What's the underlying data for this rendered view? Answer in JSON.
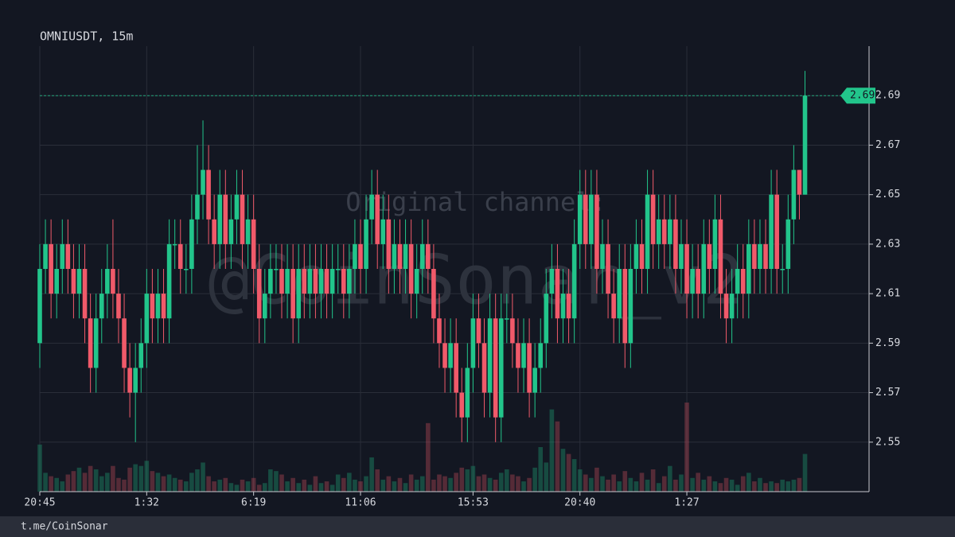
{
  "chart_data": {
    "type": "candlestick",
    "title": "OMNIUSDT, 15m",
    "watermark": [
      "Original channel:",
      "@CoinSonar_v2"
    ],
    "x": [
      "20:45",
      null,
      null,
      null,
      null,
      null,
      null,
      null,
      null,
      null,
      null,
      null,
      null,
      null,
      null,
      null,
      null,
      null,
      null,
      "1:32",
      null,
      null,
      null,
      null,
      null,
      null,
      null,
      null,
      null,
      null,
      null,
      null,
      null,
      null,
      null,
      null,
      null,
      null,
      "6:19",
      null,
      null,
      null,
      null,
      null,
      null,
      null,
      null,
      null,
      null,
      null,
      null,
      null,
      null,
      null,
      null,
      null,
      null,
      "11:06",
      null,
      null,
      null,
      null,
      null,
      null,
      null,
      null,
      null,
      null,
      null,
      null,
      null,
      null,
      null,
      null,
      null,
      null,
      null,
      "15:53",
      null,
      null,
      null,
      null,
      null,
      null,
      null,
      null,
      null,
      null,
      null,
      null,
      null,
      null,
      null,
      null,
      null,
      null,
      "20:40",
      null,
      null,
      null,
      null,
      null,
      null,
      null,
      null,
      null,
      null,
      null,
      null,
      null,
      null,
      null,
      null,
      null,
      null,
      "1:27",
      null,
      null,
      null,
      null,
      null,
      null,
      null,
      null,
      null,
      null,
      null,
      null,
      null,
      null,
      null,
      null,
      null,
      null,
      null,
      null,
      null
    ],
    "open": [
      2.59,
      2.62,
      2.63,
      2.61,
      2.62,
      2.63,
      2.62,
      2.61,
      2.62,
      2.6,
      2.58,
      2.6,
      2.61,
      2.62,
      2.61,
      2.6,
      2.58,
      2.57,
      2.58,
      2.59,
      2.61,
      2.6,
      2.61,
      2.6,
      2.63,
      2.63,
      2.62,
      2.62,
      2.64,
      2.65,
      2.66,
      2.64,
      2.63,
      2.65,
      2.63,
      2.64,
      2.65,
      2.63,
      2.64,
      2.62,
      2.6,
      2.61,
      2.62,
      2.62,
      2.61,
      2.62,
      2.6,
      2.62,
      2.61,
      2.62,
      2.61,
      2.62,
      2.61,
      2.62,
      2.62,
      2.61,
      2.62,
      2.63,
      2.62,
      2.64,
      2.65,
      2.63,
      2.64,
      2.62,
      2.63,
      2.62,
      2.63,
      2.61,
      2.62,
      2.63,
      2.62,
      2.6,
      2.59,
      2.58,
      2.59,
      2.57,
      2.56,
      2.58,
      2.6,
      2.59,
      2.57,
      2.6,
      2.56,
      2.6,
      2.6,
      2.59,
      2.58,
      2.59,
      2.57,
      2.58,
      2.59,
      2.61,
      2.62,
      2.6,
      2.61,
      2.6,
      2.63,
      2.65,
      2.63,
      2.65,
      2.62,
      2.63,
      2.61,
      2.6,
      2.62,
      2.59,
      2.62,
      2.63,
      2.62,
      2.65,
      2.63,
      2.64,
      2.63,
      2.64,
      2.62,
      2.63,
      2.61,
      2.62,
      2.61,
      2.63,
      2.62,
      2.64,
      2.61,
      2.6,
      2.61,
      2.62,
      2.61,
      2.63,
      2.62,
      2.63,
      2.62,
      2.65,
      2.62,
      2.62,
      2.64,
      2.66,
      2.65
    ],
    "high": [
      2.63,
      2.64,
      2.64,
      2.63,
      2.64,
      2.64,
      2.63,
      2.63,
      2.63,
      2.61,
      2.61,
      2.62,
      2.63,
      2.64,
      2.62,
      2.61,
      2.59,
      2.59,
      2.6,
      2.62,
      2.62,
      2.62,
      2.62,
      2.64,
      2.64,
      2.64,
      2.63,
      2.65,
      2.67,
      2.68,
      2.67,
      2.65,
      2.66,
      2.66,
      2.65,
      2.66,
      2.66,
      2.65,
      2.65,
      2.63,
      2.62,
      2.63,
      2.63,
      2.63,
      2.63,
      2.63,
      2.63,
      2.63,
      2.63,
      2.63,
      2.63,
      2.63,
      2.63,
      2.63,
      2.63,
      2.63,
      2.64,
      2.64,
      2.65,
      2.66,
      2.66,
      2.65,
      2.65,
      2.64,
      2.64,
      2.64,
      2.64,
      2.63,
      2.64,
      2.64,
      2.63,
      2.61,
      2.6,
      2.6,
      2.6,
      2.58,
      2.59,
      2.61,
      2.61,
      2.6,
      2.61,
      2.61,
      2.61,
      2.61,
      2.61,
      2.6,
      2.6,
      2.6,
      2.59,
      2.6,
      2.62,
      2.63,
      2.63,
      2.62,
      2.62,
      2.64,
      2.66,
      2.66,
      2.66,
      2.66,
      2.64,
      2.64,
      2.62,
      2.63,
      2.63,
      2.63,
      2.64,
      2.64,
      2.66,
      2.66,
      2.65,
      2.65,
      2.65,
      2.65,
      2.64,
      2.64,
      2.63,
      2.63,
      2.64,
      2.64,
      2.65,
      2.65,
      2.62,
      2.62,
      2.63,
      2.63,
      2.64,
      2.64,
      2.64,
      2.64,
      2.66,
      2.66,
      2.63,
      2.65,
      2.67,
      2.66,
      2.7
    ],
    "low": [
      2.58,
      2.61,
      2.6,
      2.6,
      2.61,
      2.61,
      2.6,
      2.6,
      2.59,
      2.57,
      2.57,
      2.59,
      2.6,
      2.6,
      2.59,
      2.57,
      2.56,
      2.55,
      2.57,
      2.58,
      2.59,
      2.59,
      2.59,
      2.59,
      2.62,
      2.61,
      2.61,
      2.61,
      2.63,
      2.64,
      2.63,
      2.62,
      2.62,
      2.62,
      2.62,
      2.63,
      2.62,
      2.62,
      2.61,
      2.59,
      2.59,
      2.6,
      2.61,
      2.6,
      2.6,
      2.59,
      2.59,
      2.6,
      2.6,
      2.6,
      2.6,
      2.6,
      2.6,
      2.61,
      2.6,
      2.6,
      2.61,
      2.61,
      2.61,
      2.63,
      2.62,
      2.62,
      2.61,
      2.61,
      2.61,
      2.61,
      2.6,
      2.6,
      2.61,
      2.61,
      2.59,
      2.58,
      2.57,
      2.57,
      2.56,
      2.55,
      2.55,
      2.57,
      2.58,
      2.56,
      2.56,
      2.55,
      2.55,
      2.59,
      2.58,
      2.57,
      2.57,
      2.56,
      2.56,
      2.57,
      2.58,
      2.6,
      2.59,
      2.59,
      2.59,
      2.59,
      2.62,
      2.62,
      2.62,
      2.61,
      2.61,
      2.6,
      2.59,
      2.59,
      2.58,
      2.58,
      2.61,
      2.61,
      2.61,
      2.62,
      2.62,
      2.62,
      2.62,
      2.61,
      2.61,
      2.6,
      2.6,
      2.6,
      2.6,
      2.61,
      2.61,
      2.6,
      2.59,
      2.59,
      2.6,
      2.6,
      2.6,
      2.61,
      2.61,
      2.61,
      2.61,
      2.61,
      2.61,
      2.61,
      2.63,
      2.64,
      2.65
    ],
    "close": [
      2.62,
      2.63,
      2.61,
      2.62,
      2.63,
      2.62,
      2.61,
      2.62,
      2.6,
      2.58,
      2.6,
      2.61,
      2.62,
      2.61,
      2.6,
      2.58,
      2.57,
      2.58,
      2.59,
      2.61,
      2.6,
      2.61,
      2.6,
      2.63,
      2.63,
      2.62,
      2.62,
      2.64,
      2.65,
      2.66,
      2.64,
      2.63,
      2.65,
      2.63,
      2.64,
      2.65,
      2.63,
      2.64,
      2.62,
      2.6,
      2.61,
      2.62,
      2.62,
      2.61,
      2.62,
      2.6,
      2.62,
      2.61,
      2.62,
      2.61,
      2.62,
      2.61,
      2.62,
      2.62,
      2.61,
      2.62,
      2.63,
      2.62,
      2.64,
      2.65,
      2.63,
      2.64,
      2.62,
      2.63,
      2.62,
      2.63,
      2.61,
      2.62,
      2.63,
      2.62,
      2.6,
      2.59,
      2.58,
      2.59,
      2.57,
      2.56,
      2.58,
      2.6,
      2.59,
      2.57,
      2.6,
      2.56,
      2.6,
      2.6,
      2.59,
      2.58,
      2.59,
      2.57,
      2.58,
      2.59,
      2.61,
      2.62,
      2.6,
      2.61,
      2.6,
      2.63,
      2.65,
      2.63,
      2.65,
      2.62,
      2.63,
      2.61,
      2.6,
      2.62,
      2.59,
      2.62,
      2.63,
      2.62,
      2.65,
      2.63,
      2.64,
      2.63,
      2.64,
      2.62,
      2.63,
      2.61,
      2.62,
      2.61,
      2.63,
      2.62,
      2.64,
      2.61,
      2.6,
      2.61,
      2.62,
      2.61,
      2.63,
      2.62,
      2.63,
      2.62,
      2.65,
      2.62,
      2.62,
      2.64,
      2.66,
      2.65,
      2.69
    ],
    "volume": [
      55,
      22,
      18,
      16,
      12,
      20,
      24,
      28,
      22,
      30,
      26,
      18,
      22,
      30,
      16,
      14,
      28,
      32,
      30,
      36,
      24,
      22,
      18,
      20,
      16,
      14,
      12,
      22,
      26,
      34,
      18,
      12,
      14,
      16,
      10,
      8,
      14,
      12,
      16,
      8,
      10,
      26,
      24,
      20,
      12,
      16,
      10,
      14,
      8,
      18,
      10,
      12,
      8,
      20,
      16,
      22,
      14,
      12,
      18,
      40,
      26,
      14,
      18,
      12,
      16,
      10,
      20,
      14,
      18,
      80,
      14,
      20,
      18,
      16,
      22,
      28,
      26,
      30,
      18,
      20,
      16,
      14,
      22,
      26,
      20,
      18,
      12,
      16,
      28,
      52,
      34,
      96,
      82,
      50,
      44,
      38,
      26,
      20,
      16,
      28,
      18,
      14,
      20,
      12,
      24,
      16,
      12,
      22,
      14,
      26,
      10,
      18,
      30,
      14,
      20,
      104,
      16,
      22,
      14,
      18,
      12,
      10,
      16,
      14,
      8,
      18,
      22,
      12,
      16,
      10,
      12,
      10,
      14,
      12,
      14,
      16,
      44
    ],
    "ylim": [
      2.53,
      2.71
    ],
    "yticks": [
      2.55,
      2.57,
      2.59,
      2.61,
      2.63,
      2.65,
      2.67,
      2.69
    ],
    "grid": true,
    "up_color": "#22c58b",
    "down_color": "#f05a6a"
  },
  "footer": "t.me/CoinSonar"
}
